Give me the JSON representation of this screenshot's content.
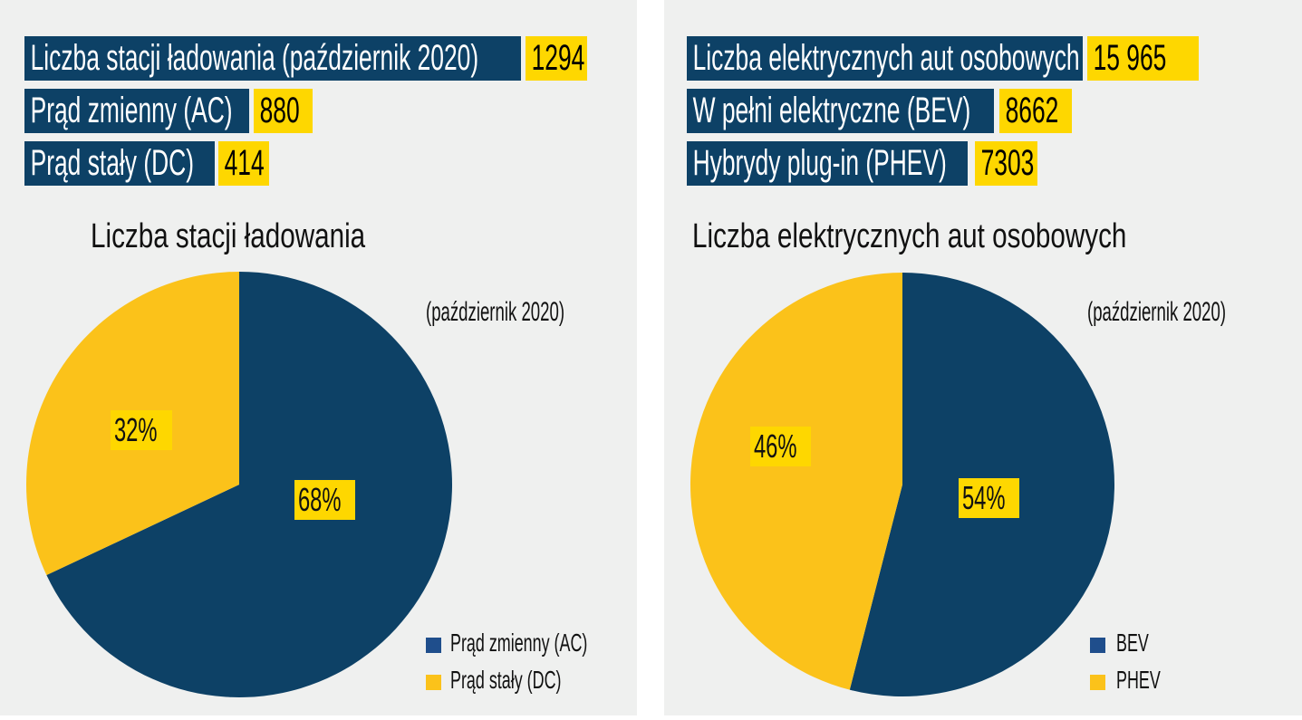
{
  "colors": {
    "navy": "#0d4166",
    "yellow": "#fbc21a",
    "label_yellow": "#fed700",
    "legend_navy": "#1f4e8c",
    "background": "#eff0ef"
  },
  "left": {
    "stats": [
      {
        "label": "Liczba stacji ładowania (październik 2020)",
        "value": "1294"
      },
      {
        "label": "Prąd zmienny (AC)",
        "value": "880"
      },
      {
        "label": "Prąd stały (DC)",
        "value": "414"
      }
    ],
    "title": "Liczba stacji ładowania",
    "subtitle": "(październik 2020)"
  },
  "right": {
    "stats": [
      {
        "label": "Liczba elektrycznych aut osobowych",
        "value": "15 965"
      },
      {
        "label": "W pełni elektryczne (BEV)",
        "value": "8662"
      },
      {
        "label": "Hybrydy plug-in (PHEV)",
        "value": "7303"
      }
    ],
    "title": "Liczba elektrycznych aut osobowych",
    "subtitle": "(październik 2020)"
  },
  "chart_data": [
    {
      "type": "pie",
      "title": "Liczba stacji ładowania",
      "subtitle": "(październik 2020)",
      "categories": [
        "Prąd zmienny (AC)",
        "Prąd stały (DC)"
      ],
      "values": [
        68,
        32
      ],
      "labels": [
        "68%",
        "32%"
      ],
      "colors": [
        "#0d4166",
        "#fbc21a"
      ],
      "legend": "bottom-right"
    },
    {
      "type": "pie",
      "title": "Liczba elektrycznych aut osobowych",
      "subtitle": "(październik 2020)",
      "categories": [
        "BEV",
        "PHEV"
      ],
      "values": [
        54,
        46
      ],
      "labels": [
        "54%",
        "46%"
      ],
      "colors": [
        "#0d4166",
        "#fbc21a"
      ],
      "legend": "bottom-right"
    }
  ]
}
